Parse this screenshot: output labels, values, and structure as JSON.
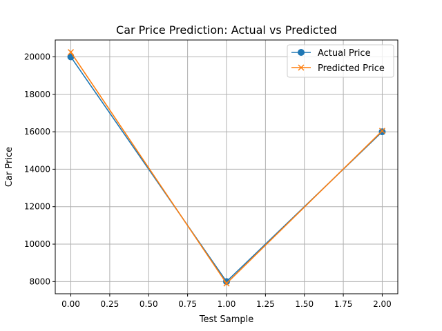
{
  "chart_data": {
    "type": "line",
    "title": "Car Price Prediction: Actual vs Predicted",
    "xlabel": "Test Sample",
    "ylabel": "Car Price",
    "x": [
      0,
      1,
      2
    ],
    "xlim": [
      -0.1,
      2.1
    ],
    "ylim": [
      7350,
      20900
    ],
    "xticks": [
      0.0,
      0.25,
      0.5,
      0.75,
      1.0,
      1.25,
      1.5,
      1.75,
      2.0
    ],
    "xtick_labels": [
      "0.00",
      "0.25",
      "0.50",
      "0.75",
      "1.00",
      "1.25",
      "1.50",
      "1.75",
      "2.00"
    ],
    "yticks": [
      8000,
      10000,
      12000,
      14000,
      16000,
      18000,
      20000
    ],
    "ytick_labels": [
      "8000",
      "10000",
      "12000",
      "14000",
      "16000",
      "18000",
      "20000"
    ],
    "grid": true,
    "legend_position": "top-right",
    "series": [
      {
        "name": "Actual Price",
        "values": [
          20000,
          8000,
          16000
        ],
        "color": "#1f77b4",
        "marker": "circle"
      },
      {
        "name": "Predicted Price",
        "values": [
          20250,
          7900,
          16050
        ],
        "color": "#ff7f0e",
        "marker": "x"
      }
    ]
  }
}
